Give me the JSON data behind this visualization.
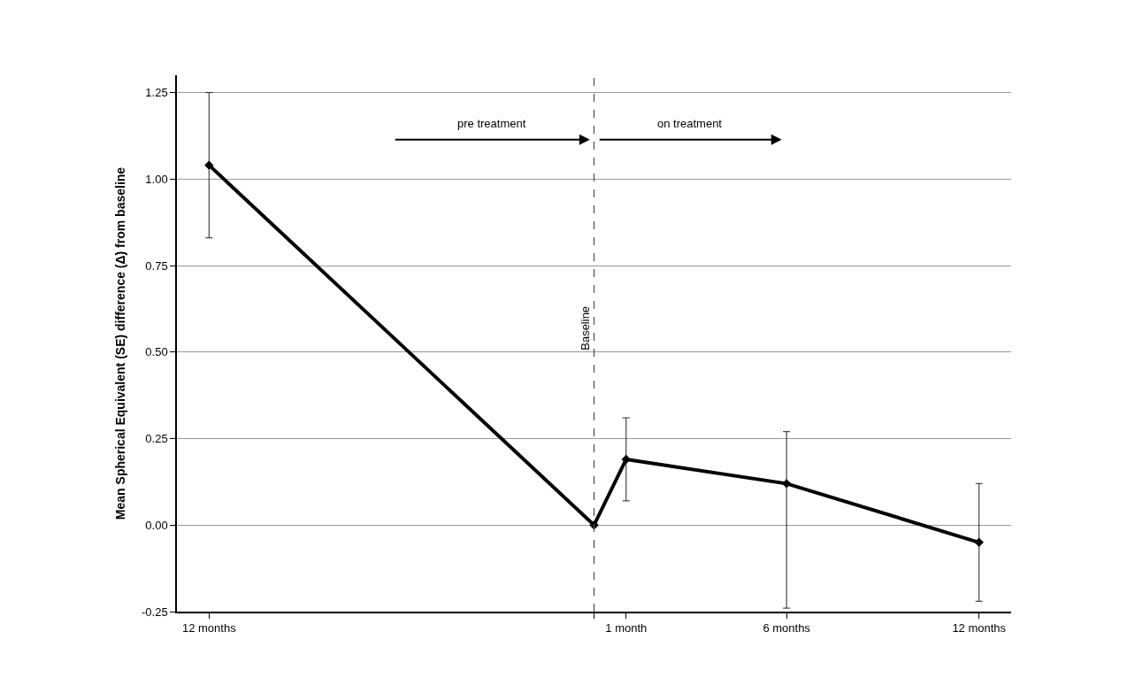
{
  "chart_data": {
    "type": "line",
    "ylabel": "Mean Spherical Equivalent (SE) difference (Δ) from baseline",
    "x": [
      -12,
      0,
      1,
      6,
      12
    ],
    "series": [
      {
        "color": "#000000",
        "values": [
          1.04,
          0,
          0.19,
          0.12,
          -0.05
        ],
        "errors": [
          [
            0.83,
            1.25
          ],
          null,
          [
            0.07,
            0.31
          ],
          [
            -0.24,
            0.27
          ],
          [
            -0.22,
            0.12
          ]
        ]
      }
    ],
    "xlim": [
      -13,
      13
    ],
    "xticks": [
      {
        "value": -12,
        "label": "12 months"
      },
      {
        "value": 0,
        "label": null
      },
      {
        "value": 1,
        "label": "1 month"
      },
      {
        "value": 6,
        "label": "6 months"
      },
      {
        "value": 12,
        "label": "12 months"
      }
    ],
    "ylim": [
      -0.25,
      1.3
    ],
    "yticks": [
      {
        "value": -0.25,
        "label": "-0.25"
      },
      {
        "value": 0,
        "label": "0.00"
      },
      {
        "value": 0.25,
        "label": "0.25"
      },
      {
        "value": 0.5,
        "label": "0.50"
      },
      {
        "value": 0.75,
        "label": "0.75"
      },
      {
        "value": 1,
        "label": "1.00"
      },
      {
        "value": 1.25,
        "label": "1.25"
      }
    ],
    "ref_lines": [
      {
        "axis": "x",
        "value": 0,
        "label": "Baseline",
        "color": "#555555",
        "line_style": "dashed"
      }
    ],
    "annotations": [
      "pre treatment",
      "on treatment"
    ],
    "grid": "y",
    "marker": "diamond",
    "line_style": "solid"
  }
}
